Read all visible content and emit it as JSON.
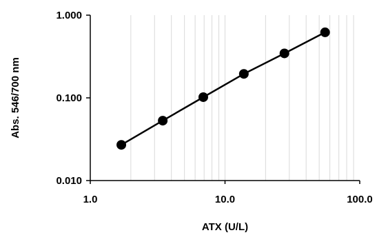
{
  "chart_data": {
    "type": "scatter",
    "title": "",
    "xlabel": "ATX (U/L)",
    "ylabel": "Abs. 546/700 nm",
    "x_scale": "log",
    "y_scale": "log",
    "xlim": [
      1,
      100
    ],
    "ylim": [
      0.01,
      1
    ],
    "x_tick_values": [
      1,
      10,
      100
    ],
    "x_tick_labels": [
      "1.0",
      "10.0",
      "100.0"
    ],
    "y_tick_values": [
      0.01,
      0.1,
      1
    ],
    "y_tick_labels": [
      "0.010",
      "0.100",
      "1.000"
    ],
    "grid": "x-minor and x-major vertical gridlines",
    "legend": "none",
    "series": [
      {
        "x": [
          1.7,
          3.45,
          6.9,
          13.8,
          27.6,
          55.3
        ],
        "y": [
          0.027,
          0.053,
          0.102,
          0.195,
          0.345,
          0.62
        ],
        "marker": "filled-circle",
        "line": "solid"
      }
    ],
    "colors": {
      "series": "#000000",
      "grid": "#d9d9d9",
      "axis": "#000000"
    }
  }
}
